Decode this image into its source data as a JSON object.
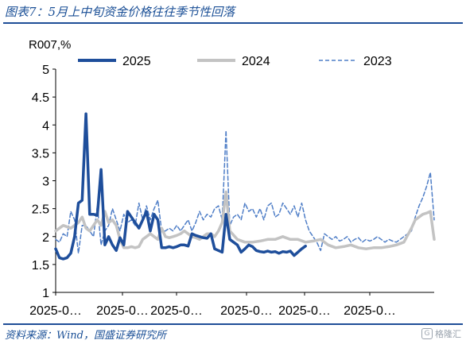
{
  "page": {
    "title": "图表7：5月上中旬资金价格往往季节性回落",
    "source": "资料来源：Wind，国盛证券研究所",
    "watermark": "格隆汇"
  },
  "chart_data": {
    "type": "line",
    "ylabel": "R007,%",
    "ylim": [
      1,
      5
    ],
    "yticks": [
      "1",
      "1.5",
      "2",
      "2.5",
      "3",
      "3.5",
      "4",
      "4.5",
      "5"
    ],
    "xticks": [
      "2025-0…",
      "2025-0…",
      "2025-0…",
      "2025-0…",
      "2025-0…",
      "2025-0…"
    ],
    "xlim": [
      0,
      100
    ],
    "grid": false,
    "legend": "top",
    "series": [
      {
        "name": "2025",
        "color": "#1e4e9b",
        "style": "solid-thick",
        "x": [
          0,
          1,
          2,
          3,
          4,
          5,
          6,
          7,
          8,
          9,
          10,
          11,
          12,
          13,
          14,
          15,
          16,
          17,
          18,
          19,
          20,
          21,
          22,
          23,
          24,
          25,
          26,
          27,
          28,
          29,
          30,
          31,
          32,
          33,
          34,
          35,
          36,
          37,
          38,
          39,
          40,
          41,
          42,
          43,
          44,
          45,
          46,
          47,
          48,
          49,
          50,
          51,
          52,
          53,
          54,
          55,
          56,
          57,
          58,
          59,
          60,
          61,
          62,
          63,
          64,
          65,
          66,
          67,
          68,
          69,
          70
        ],
        "values": [
          1.78,
          1.62,
          1.6,
          1.62,
          1.7,
          2.0,
          2.6,
          2.65,
          4.2,
          2.4,
          2.4,
          2.38,
          3.2,
          1.85,
          2.0,
          1.85,
          1.75,
          1.98,
          1.85,
          2.45,
          2.35,
          2.25,
          2.15,
          2.3,
          2.45,
          2.1,
          2.4,
          2.3,
          1.8,
          1.8,
          1.82,
          1.8,
          1.82,
          1.85,
          1.85,
          1.83,
          2.05,
          2.02,
          2.0,
          1.98,
          1.97,
          2.05,
          1.78,
          1.75,
          1.72,
          2.4,
          1.95,
          1.9,
          1.85,
          1.72,
          1.78,
          1.85,
          1.82,
          1.75,
          1.73,
          1.72,
          1.74,
          1.72,
          1.73,
          1.7,
          1.73,
          1.72,
          1.74,
          1.66,
          1.72,
          1.78,
          1.83,
          null,
          null,
          null,
          null
        ]
      },
      {
        "name": "2024",
        "color": "#c3c3c3",
        "style": "solid-thick",
        "x": [
          0,
          2,
          4,
          5,
          6,
          7,
          8,
          9,
          10,
          11,
          12,
          13,
          14,
          15,
          16,
          17,
          18,
          19,
          20,
          21,
          22,
          23,
          24,
          25,
          26,
          27,
          28,
          29,
          30,
          31,
          32,
          33,
          34,
          35,
          36,
          37,
          38,
          39,
          40,
          41,
          42,
          43,
          44,
          45,
          46,
          48,
          50,
          52,
          54,
          56,
          58,
          60,
          62,
          64,
          66,
          68,
          70,
          72,
          74,
          76,
          78,
          80,
          82,
          84,
          86,
          88,
          90,
          92,
          94,
          95,
          96,
          97,
          98,
          99,
          100
        ],
        "values": [
          2.1,
          2.2,
          2.15,
          2.2,
          2.25,
          2.35,
          2.15,
          2.1,
          2.2,
          2.3,
          2.2,
          2.45,
          2.25,
          2.3,
          2.2,
          1.95,
          1.8,
          1.8,
          1.82,
          1.8,
          1.82,
          1.95,
          2.0,
          2.05,
          2.0,
          1.95,
          2.15,
          2.0,
          1.98,
          2.0,
          2.02,
          2.05,
          2.1,
          2.05,
          2.0,
          1.98,
          1.95,
          2.0,
          2.05,
          2.05,
          2.0,
          2.1,
          2.25,
          2.8,
          2.1,
          1.95,
          1.9,
          1.9,
          1.92,
          1.95,
          1.95,
          2.0,
          1.95,
          1.95,
          1.9,
          1.92,
          1.95,
          1.85,
          1.8,
          1.82,
          1.85,
          1.8,
          1.78,
          1.8,
          1.8,
          1.82,
          1.85,
          1.9,
          2.15,
          2.3,
          2.35,
          2.4,
          2.42,
          2.45,
          1.95
        ]
      },
      {
        "name": "2023",
        "color": "#4f7ec7",
        "style": "dashed",
        "x": [
          0,
          1,
          2,
          3,
          4,
          5,
          6,
          7,
          8,
          9,
          10,
          11,
          12,
          13,
          14,
          15,
          16,
          17,
          18,
          19,
          20,
          21,
          22,
          23,
          24,
          25,
          26,
          27,
          28,
          29,
          30,
          31,
          32,
          33,
          34,
          35,
          36,
          37,
          38,
          39,
          40,
          41,
          42,
          43,
          44,
          45,
          46,
          47,
          48,
          49,
          50,
          51,
          52,
          53,
          54,
          55,
          56,
          57,
          58,
          59,
          60,
          61,
          62,
          63,
          64,
          65,
          66,
          67,
          68,
          69,
          70,
          71,
          72,
          73,
          74,
          75,
          76,
          77,
          78,
          79,
          80,
          81,
          82,
          83,
          84,
          85,
          86,
          87,
          88,
          89,
          90,
          91,
          92,
          93,
          94,
          95,
          96,
          97,
          98,
          99,
          100
        ],
        "values": [
          1.95,
          1.9,
          2.05,
          2.0,
          2.45,
          2.3,
          1.7,
          2.2,
          2.2,
          2.1,
          2.0,
          2.55,
          1.85,
          2.1,
          2.2,
          2.5,
          2.3,
          2.1,
          2.4,
          2.25,
          2.3,
          2.2,
          2.6,
          2.3,
          2.55,
          2.3,
          2.5,
          2.65,
          2.1,
          2.1,
          2.15,
          2.1,
          2.2,
          2.1,
          2.2,
          2.3,
          2.1,
          2.25,
          2.45,
          2.3,
          2.4,
          2.35,
          2.5,
          2.55,
          2.3,
          3.9,
          2.2,
          2.35,
          2.4,
          2.3,
          2.6,
          2.45,
          2.5,
          2.35,
          2.5,
          2.3,
          2.55,
          2.6,
          2.35,
          2.4,
          2.6,
          2.5,
          2.4,
          2.55,
          2.35,
          2.6,
          2.3,
          2.1,
          2.0,
          1.9,
          1.75,
          2.05,
          2.0,
          1.95,
          2.0,
          1.92,
          1.95,
          2.0,
          1.9,
          1.95,
          1.98,
          1.9,
          1.95,
          1.92,
          1.95,
          2.0,
          1.95,
          1.9,
          1.95,
          1.92,
          1.9,
          1.95,
          2.0,
          2.05,
          2.1,
          2.35,
          2.55,
          2.7,
          2.9,
          3.15,
          2.3
        ]
      }
    ]
  }
}
